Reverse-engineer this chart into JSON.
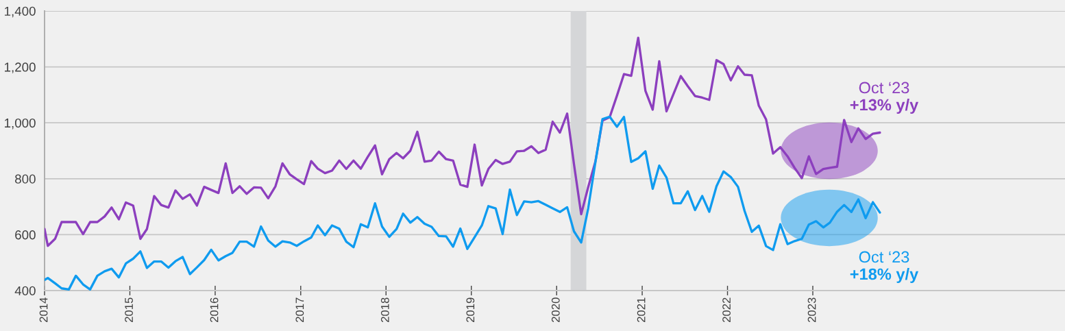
{
  "chart_data": {
    "type": "line",
    "x": [
      "2014-01-01",
      "2014-01-15",
      "2014-02-15",
      "2014-03-15",
      "2014-04-15",
      "2014-05-15",
      "2014-06-15",
      "2014-07-15",
      "2014-08-15",
      "2014-09-15",
      "2014-10-15",
      "2014-11-15",
      "2014-12-15",
      "2015-01-15",
      "2015-02-15",
      "2015-03-15",
      "2015-04-15",
      "2015-05-15",
      "2015-06-15",
      "2015-07-15",
      "2015-08-15",
      "2015-09-15",
      "2015-10-15",
      "2015-11-15",
      "2015-12-15",
      "2016-01-15",
      "2016-02-15",
      "2016-03-15",
      "2016-04-15",
      "2016-05-15",
      "2016-06-15",
      "2016-07-15",
      "2016-08-15",
      "2016-09-15",
      "2016-10-15",
      "2016-11-15",
      "2016-12-15",
      "2017-01-15",
      "2017-02-15",
      "2017-03-15",
      "2017-04-15",
      "2017-05-15",
      "2017-06-15",
      "2017-07-15",
      "2017-08-15",
      "2017-09-15",
      "2017-10-15",
      "2017-11-15",
      "2017-12-15",
      "2018-01-15",
      "2018-02-15",
      "2018-03-15",
      "2018-04-15",
      "2018-05-15",
      "2018-06-15",
      "2018-07-15",
      "2018-08-15",
      "2018-09-15",
      "2018-10-15",
      "2018-11-15",
      "2018-12-15",
      "2019-01-15",
      "2019-02-15",
      "2019-03-15",
      "2019-04-15",
      "2019-05-15",
      "2019-06-15",
      "2019-07-15",
      "2019-08-15",
      "2019-09-15",
      "2019-10-15",
      "2019-11-15",
      "2019-12-15",
      "2020-01-15",
      "2020-02-15",
      "2020-03-15",
      "2020-04-15",
      "2020-05-15",
      "2020-06-15",
      "2020-07-15",
      "2020-08-15",
      "2020-09-15",
      "2020-10-15",
      "2020-11-15",
      "2020-12-15",
      "2021-01-15",
      "2021-02-15",
      "2021-03-15",
      "2021-04-15",
      "2021-05-15",
      "2021-06-15",
      "2021-07-15",
      "2021-08-15",
      "2021-09-15",
      "2021-10-15",
      "2021-11-15",
      "2021-12-15",
      "2022-01-15",
      "2022-02-15",
      "2022-03-15",
      "2022-04-15",
      "2022-05-15",
      "2022-06-15",
      "2022-07-15",
      "2022-08-15",
      "2022-09-15",
      "2022-10-15",
      "2022-11-15",
      "2022-12-15",
      "2023-01-15",
      "2023-02-15",
      "2023-03-15",
      "2023-04-15",
      "2023-05-15",
      "2023-06-15",
      "2023-07-15",
      "2023-08-15",
      "2023-09-15",
      "2023-10-15"
    ],
    "series": [
      {
        "color": "#8c3fbe",
        "values": [
          620,
          560,
          585,
          645,
          645,
          645,
          602,
          645,
          645,
          665,
          697,
          655,
          715,
          704,
          585,
          620,
          738,
          706,
          697,
          758,
          728,
          744,
          704,
          771,
          760,
          749,
          855,
          749,
          773,
          746,
          769,
          768,
          730,
          773,
          855,
          816,
          798,
          781,
          863,
          836,
          820,
          829,
          865,
          835,
          865,
          836,
          878,
          919,
          816,
          870,
          892,
          873,
          900,
          968,
          861,
          865,
          897,
          870,
          865,
          779,
          771,
          922,
          776,
          835,
          867,
          853,
          861,
          898,
          900,
          916,
          892,
          904,
          1004,
          965,
          1033,
          853,
          673,
          770,
          862,
          1008,
          1020,
          1097,
          1174,
          1168,
          1304,
          1114,
          1047,
          1220,
          1041,
          1103,
          1167,
          1131,
          1096,
          1090,
          1082,
          1224,
          1210,
          1152,
          1202,
          1172,
          1170,
          1061,
          1012,
          890,
          913,
          880,
          839,
          802,
          880,
          817,
          835,
          839,
          843,
          1010,
          931,
          980,
          942,
          961,
          965
        ]
      },
      {
        "color": "#0f9bef",
        "values": [
          438,
          445,
          426,
          408,
          404,
          453,
          422,
          404,
          453,
          469,
          478,
          447,
          497,
          514,
          540,
          481,
          504,
          504,
          482,
          505,
          520,
          459,
          483,
          509,
          546,
          508,
          523,
          535,
          575,
          575,
          557,
          629,
          579,
          557,
          576,
          572,
          560,
          576,
          590,
          633,
          598,
          633,
          621,
          575,
          555,
          637,
          626,
          712,
          629,
          592,
          620,
          675,
          643,
          663,
          639,
          628,
          595,
          594,
          557,
          622,
          549,
          591,
          633,
          702,
          694,
          602,
          761,
          670,
          719,
          716,
          720,
          707,
          694,
          681,
          698,
          612,
          572,
          694,
          860,
          1013,
          1022,
          986,
          1021,
          860,
          873,
          898,
          764,
          847,
          804,
          712,
          712,
          755,
          688,
          738,
          682,
          773,
          826,
          806,
          771,
          685,
          610,
          632,
          559,
          545,
          637,
          566,
          577,
          585,
          636,
          648,
          626,
          643,
          682,
          706,
          681,
          726,
          659,
          716,
          679
        ]
      }
    ],
    "xlim": [
      "2014",
      "2025-12-15"
    ],
    "xticks": [
      "2014",
      "2015",
      "2016",
      "2017",
      "2018",
      "2019",
      "2020",
      "2021",
      "2022",
      "2023"
    ],
    "ylim": [
      400,
      1400
    ],
    "yticks": [
      400,
      600,
      800,
      {
        "value": 1000,
        "label": "1,000"
      },
      {
        "value": 1200,
        "label": "1,200"
      },
      {
        "value": 1400,
        "label": "1,400"
      }
    ],
    "grid": "y",
    "bands": [
      {
        "axis": "x",
        "from": "2020-03-01",
        "to": "2020-05-07",
        "color": "#d5d6d8"
      }
    ],
    "annotations": [
      "Oct ‘23",
      "+13% y/y",
      "Oct ‘23",
      "+18% y/y"
    ]
  }
}
